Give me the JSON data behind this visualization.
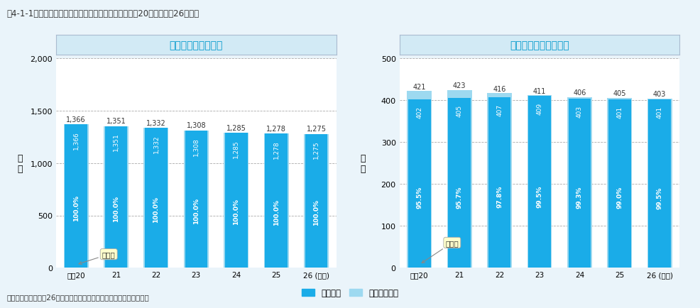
{
  "title": "図4-1-1　二酸化窒素の環境基準達成状況の推移（平成20年度～平成26年度）",
  "subtitle_left": "一般環境大気測定局",
  "subtitle_right": "自動車排出ガス測定局",
  "years": [
    "平成20",
    "21",
    "22",
    "23",
    "24",
    "25",
    "26 (年度)"
  ],
  "left_total": [
    1366,
    1351,
    1332,
    1308,
    1285,
    1278,
    1275
  ],
  "left_achieved": [
    1366,
    1351,
    1332,
    1308,
    1285,
    1278,
    1275
  ],
  "left_rate": [
    "100.0%",
    "100.0%",
    "100.0%",
    "100.0%",
    "100.0%",
    "100.0%",
    "100.0%"
  ],
  "right_total": [
    421,
    423,
    416,
    411,
    406,
    405,
    403
  ],
  "right_achieved": [
    402,
    405,
    407,
    409,
    403,
    401,
    401
  ],
  "right_rate": [
    "95.5%",
    "95.7%",
    "97.8%",
    "99.5%",
    "99.3%",
    "99.0%",
    "99.5%"
  ],
  "left_ylim": [
    0,
    2000
  ],
  "left_yticks": [
    0,
    500,
    1000,
    1500,
    2000
  ],
  "right_ylim": [
    0,
    500
  ],
  "right_yticks": [
    0,
    100,
    200,
    300,
    400,
    500
  ],
  "color_dark_blue": "#1AACE8",
  "color_light_blue": "#9DD9F0",
  "color_bg": "#EAF4FA",
  "color_header_bg": "#D2EAF5",
  "color_header_text": "#0099CC",
  "grid_color": "#AAAAAA",
  "ylabel": "局\n数",
  "legend_achieved": "達成局数",
  "legend_total": "有効測定局数",
  "source": "資料：環境省「平成26年度大気汚染状況について（報道発表資料）」",
  "annotation_left": "達成率",
  "annotation_right": "達成率"
}
